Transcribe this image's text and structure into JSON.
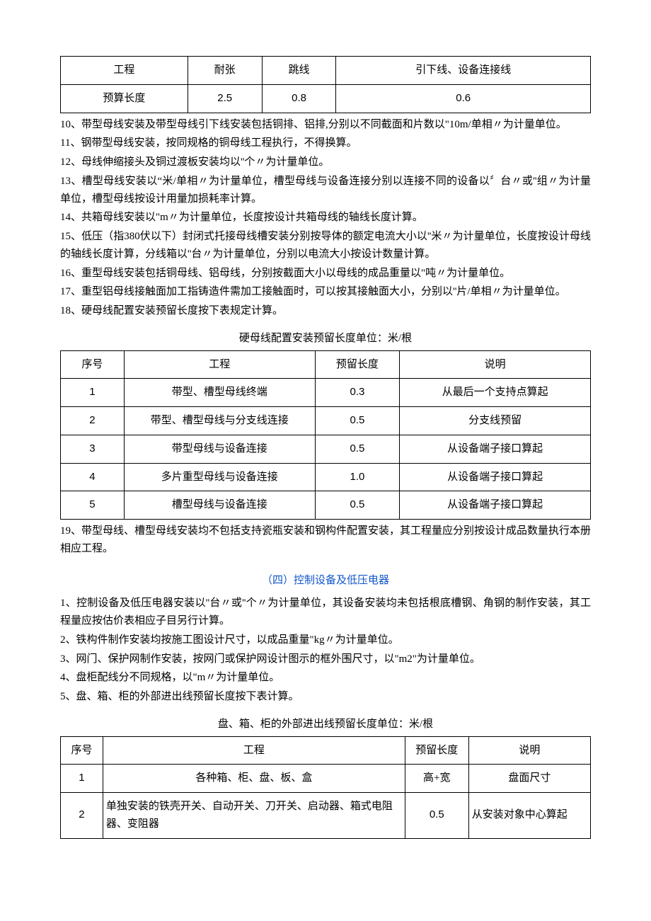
{
  "table1": {
    "rows": [
      [
        "工程",
        "耐张",
        "跳线",
        "引下线、设备连接线"
      ],
      [
        "预算长度",
        "2.5",
        "0.8",
        "0.6"
      ]
    ]
  },
  "paras_mid": [
    "10、带型母线安装及带型母线引下线安装包括铜排、铝排,分别以不同截面和片数以\"10m/单相〃为计量单位。",
    "11、钢带型母线安装，按同规格的铜母线工程执行，不得换算。",
    "12、母线伸缩接头及铜过渡板安装均以''个〃为计量单位。",
    "13、槽型母线安装以“米/单相〃为计量单位，槽型母线与设备连接分别以连接不同的设备以〞台〃或''组〃为计量单位，槽型母线按设计用量加损耗率计算。",
    "14、共箱母线安装以\"m〃为计量单位，长度按设计共箱母线的轴线长度计算。",
    "15、低压（指380伏以下）封闭式托接母线槽安装分别按导体的额定电流大小以''米〃为计量单位，长度按设计母线的轴线长度计算，分线箱以''台〃为计量单位，分别以电流大小按设计数量计算。",
    "16、重型母线安装包括铜母线、铝母线，分别按截面大小以母线的成品重量以\"吨〃为计量单位。",
    "17、重型铝母线接触面加工指铸造件需加工接触面时，可以按其接触面大小，分别以''片/单相〃为计量单位。",
    "18、硬母线配置安装预留长度按下表规定计算。"
  ],
  "table2": {
    "caption": "硬母线配置安装预留长度单位：米/根",
    "header": [
      "序号",
      "工程",
      "预留长度",
      "说明"
    ],
    "rows": [
      [
        "1",
        "带型、槽型母线终端",
        "0.3",
        "从最后一个支持点算起"
      ],
      [
        "2",
        "带型、槽型母线与分支线连接",
        "0.5",
        "分支线预留"
      ],
      [
        "3",
        "带型母线与设备连接",
        "0.5",
        "从设备端子接口算起"
      ],
      [
        "4",
        "多片重型母线与设备连接",
        "1.0",
        "从设备端子接口算起"
      ],
      [
        "5",
        "槽型母线与设备连接",
        "0.5",
        "从设备端子接口算起"
      ]
    ]
  },
  "para19": "19、带型母线、槽型母线安装均不包括支持瓷瓶安装和钢构件配置安装，其工程量应分别按设计成品数量执行本册相应工程。",
  "section_title": "（四）控制设备及低压电器",
  "paras_low": [
    "1、控制设备及低压电器安装以''台〃或''个〃为计量单位，其设备安装均未包括根底槽钢、角钢的制作安装，其工程量应按估价表相应子目另行计算。",
    "2、铁构件制作安装均按施工图设计尺寸，以成品重量\"kg〃为计量单位。",
    "3、网门、保护网制作安装，按网门或保护网设计图示的框外围尺寸，以\"m2\"为计量单位。",
    "4、盘柜配线分不同规格，以\"m〃为计量单位。",
    "5、盘、箱、柜的外部进出线预留长度按下表计算。"
  ],
  "table3": {
    "caption": "盘、箱、柜的外部进出线预留长度单位：米/根",
    "header": [
      "序号",
      "工程",
      "预留长度",
      "说明"
    ],
    "rows": [
      [
        "1",
        "各种箱、柜、盘、板、盒",
        "高+宽",
        "盘面尺寸"
      ],
      [
        "2",
        "单独安装的铁壳开关、自动开关、刀开关、启动器、箱式电阻器、变阻器",
        "0.5",
        "从安装对象中心算起"
      ]
    ]
  },
  "colors": {
    "section_title": "#1155cc",
    "text": "#000000",
    "border": "#000000",
    "background": "#ffffff"
  }
}
